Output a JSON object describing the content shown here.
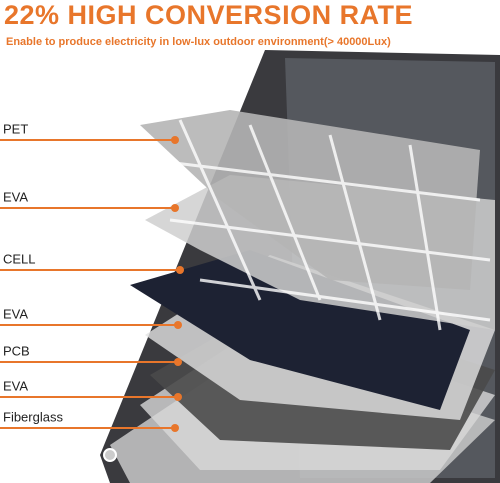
{
  "header": {
    "title": "22% HIGH CONVERSION RATE",
    "subtitle": "Enable to produce electricity in low-lux outdoor environment(> 40000Lux)"
  },
  "layers": [
    {
      "label": "PET"
    },
    {
      "label": "EVA"
    },
    {
      "label": "CELL"
    },
    {
      "label": "EVA"
    },
    {
      "label": "PCB"
    },
    {
      "label": "EVA"
    },
    {
      "label": "Fiberglass"
    }
  ]
}
